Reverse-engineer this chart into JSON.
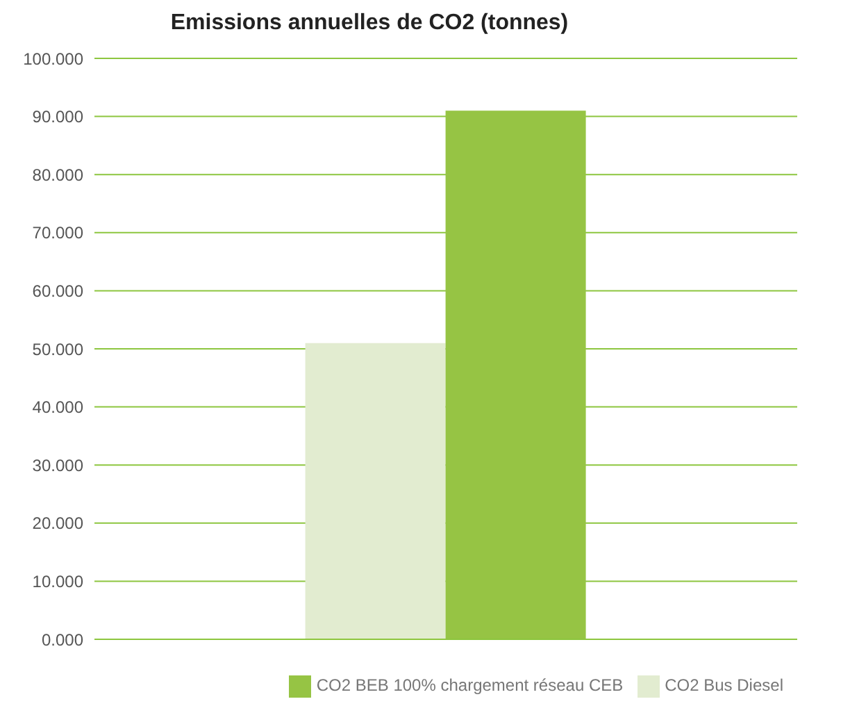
{
  "chart_data": {
    "type": "bar",
    "title": "Emissions annuelles de CO2 (tonnes)",
    "categories": [
      null
    ],
    "series": [
      {
        "name": "CO2 Bus Diesel",
        "color": "#e2ecd0",
        "values": [
          51
        ]
      },
      {
        "name": "CO2 BEB 100% chargement réseau CEB",
        "color": "#96c444",
        "values": [
          91
        ]
      }
    ],
    "ylim": [
      0,
      100
    ],
    "yticks": [
      {
        "value": 0,
        "label": "0.000"
      },
      {
        "value": 10,
        "label": "10.000"
      },
      {
        "value": 20,
        "label": "20.000"
      },
      {
        "value": 30,
        "label": "30.000"
      },
      {
        "value": 40,
        "label": "40.000"
      },
      {
        "value": 50,
        "label": "50.000"
      },
      {
        "value": 60,
        "label": "60.000"
      },
      {
        "value": 70,
        "label": "70.000"
      },
      {
        "value": 80,
        "label": "80.000"
      },
      {
        "value": 90,
        "label": "90.000"
      },
      {
        "value": 100,
        "label": "100.000"
      }
    ],
    "grid": "y",
    "legend": "bottom right"
  }
}
